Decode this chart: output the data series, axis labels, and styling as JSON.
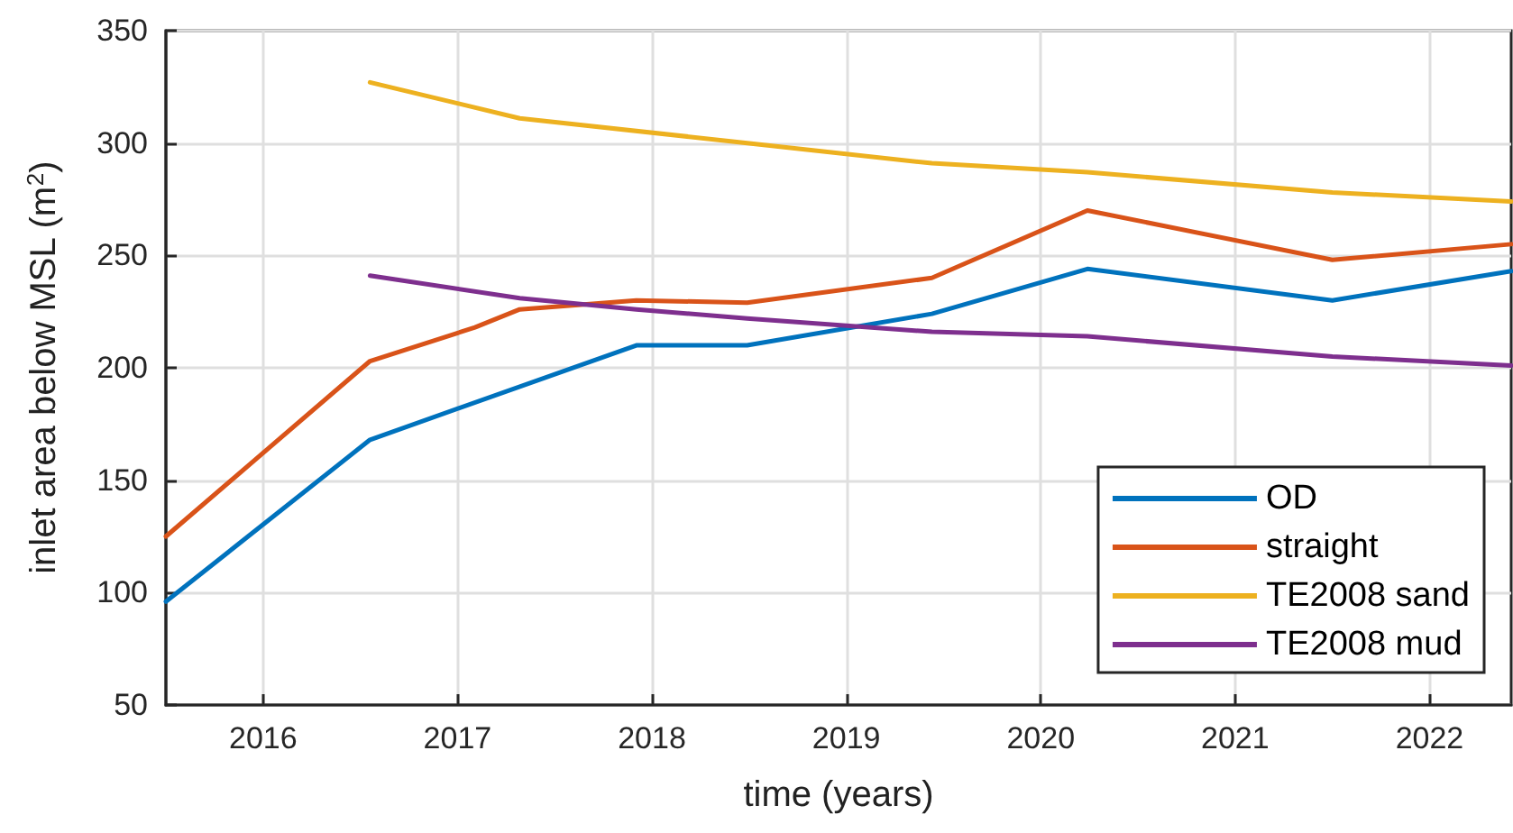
{
  "chart_data": {
    "type": "line",
    "xlabel": "time (years)",
    "ylabel": "inlet area below MSL (m$^{2}$)",
    "xlim": [
      2015.5,
      2022.42
    ],
    "xticks": [
      2016,
      2017,
      2018,
      2019,
      2020,
      2021,
      2022
    ],
    "ylim": [
      50,
      350
    ],
    "yticks": [
      50,
      100,
      150,
      200,
      250,
      300,
      350
    ],
    "grid": true,
    "legend": "bottom right",
    "marker": "none",
    "line_style": "solid",
    "series": [
      {
        "name": "OD",
        "color": "#0072bd",
        "x": [
          2015.5,
          2016.55,
          2017.92,
          2018.49,
          2019.44,
          2020.24,
          2021.5,
          2022.42
        ],
        "values": [
          96,
          168,
          210,
          210,
          224,
          244,
          230,
          243
        ]
      },
      {
        "name": "straight",
        "color": "#d95319",
        "x": [
          2015.5,
          2016.55,
          2017.09,
          2017.32,
          2017.92,
          2018.49,
          2019.44,
          2020.24,
          2021.5,
          2022.42
        ],
        "values": [
          125,
          203,
          218,
          226,
          230,
          229,
          240,
          270,
          248,
          255
        ]
      },
      {
        "name": "TE2008 sand",
        "color": "#edb120",
        "x": [
          2016.55,
          2017.32,
          2018.49,
          2019.44,
          2020.24,
          2021.5,
          2022.42
        ],
        "values": [
          327,
          311,
          300,
          291,
          287,
          278,
          274
        ]
      },
      {
        "name": "TE2008 mud",
        "color": "#7e2f8e",
        "x": [
          2016.55,
          2017.32,
          2017.92,
          2018.49,
          2019.44,
          2020.24,
          2021.5,
          2022.42
        ],
        "values": [
          241,
          231,
          226,
          222,
          216,
          214,
          205,
          201
        ]
      }
    ]
  }
}
